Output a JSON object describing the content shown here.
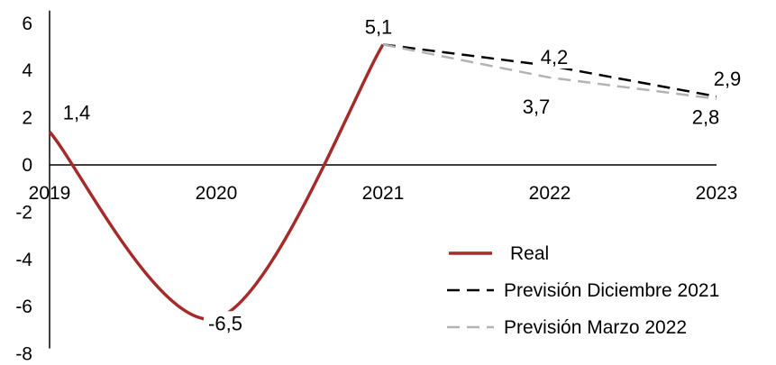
{
  "chart_data": {
    "type": "line",
    "title": "",
    "xlabel": "",
    "ylabel": "",
    "x": [
      "2019",
      "2020",
      "2021",
      "2022",
      "2023"
    ],
    "y_ticks": [
      "6",
      "4",
      "2",
      "0",
      "-2",
      "-4",
      "-6",
      "-8"
    ],
    "ylim": [
      -8,
      6
    ],
    "grid": false,
    "legend_position": "bottom-right",
    "series": [
      {
        "name": "Real",
        "x": [
          "2019",
          "2020",
          "2021"
        ],
        "values": [
          1.4,
          -6.5,
          5.1
        ],
        "color": "#a52a2a",
        "style": "solid"
      },
      {
        "name": "Previsión Diciembre 2021",
        "x": [
          "2021",
          "2022",
          "2023"
        ],
        "values": [
          5.1,
          4.2,
          2.9
        ],
        "color": "#000000",
        "style": "dashed"
      },
      {
        "name": "Previsión Marzo 2022",
        "x": [
          "2021",
          "2022",
          "2023"
        ],
        "values": [
          5.1,
          3.7,
          2.8
        ],
        "color": "#b3b3b3",
        "style": "dashed"
      }
    ],
    "data_labels": [
      "1,4",
      "-6,5",
      "5,1",
      "4,2",
      "3,7",
      "2,9",
      "2,8"
    ]
  }
}
